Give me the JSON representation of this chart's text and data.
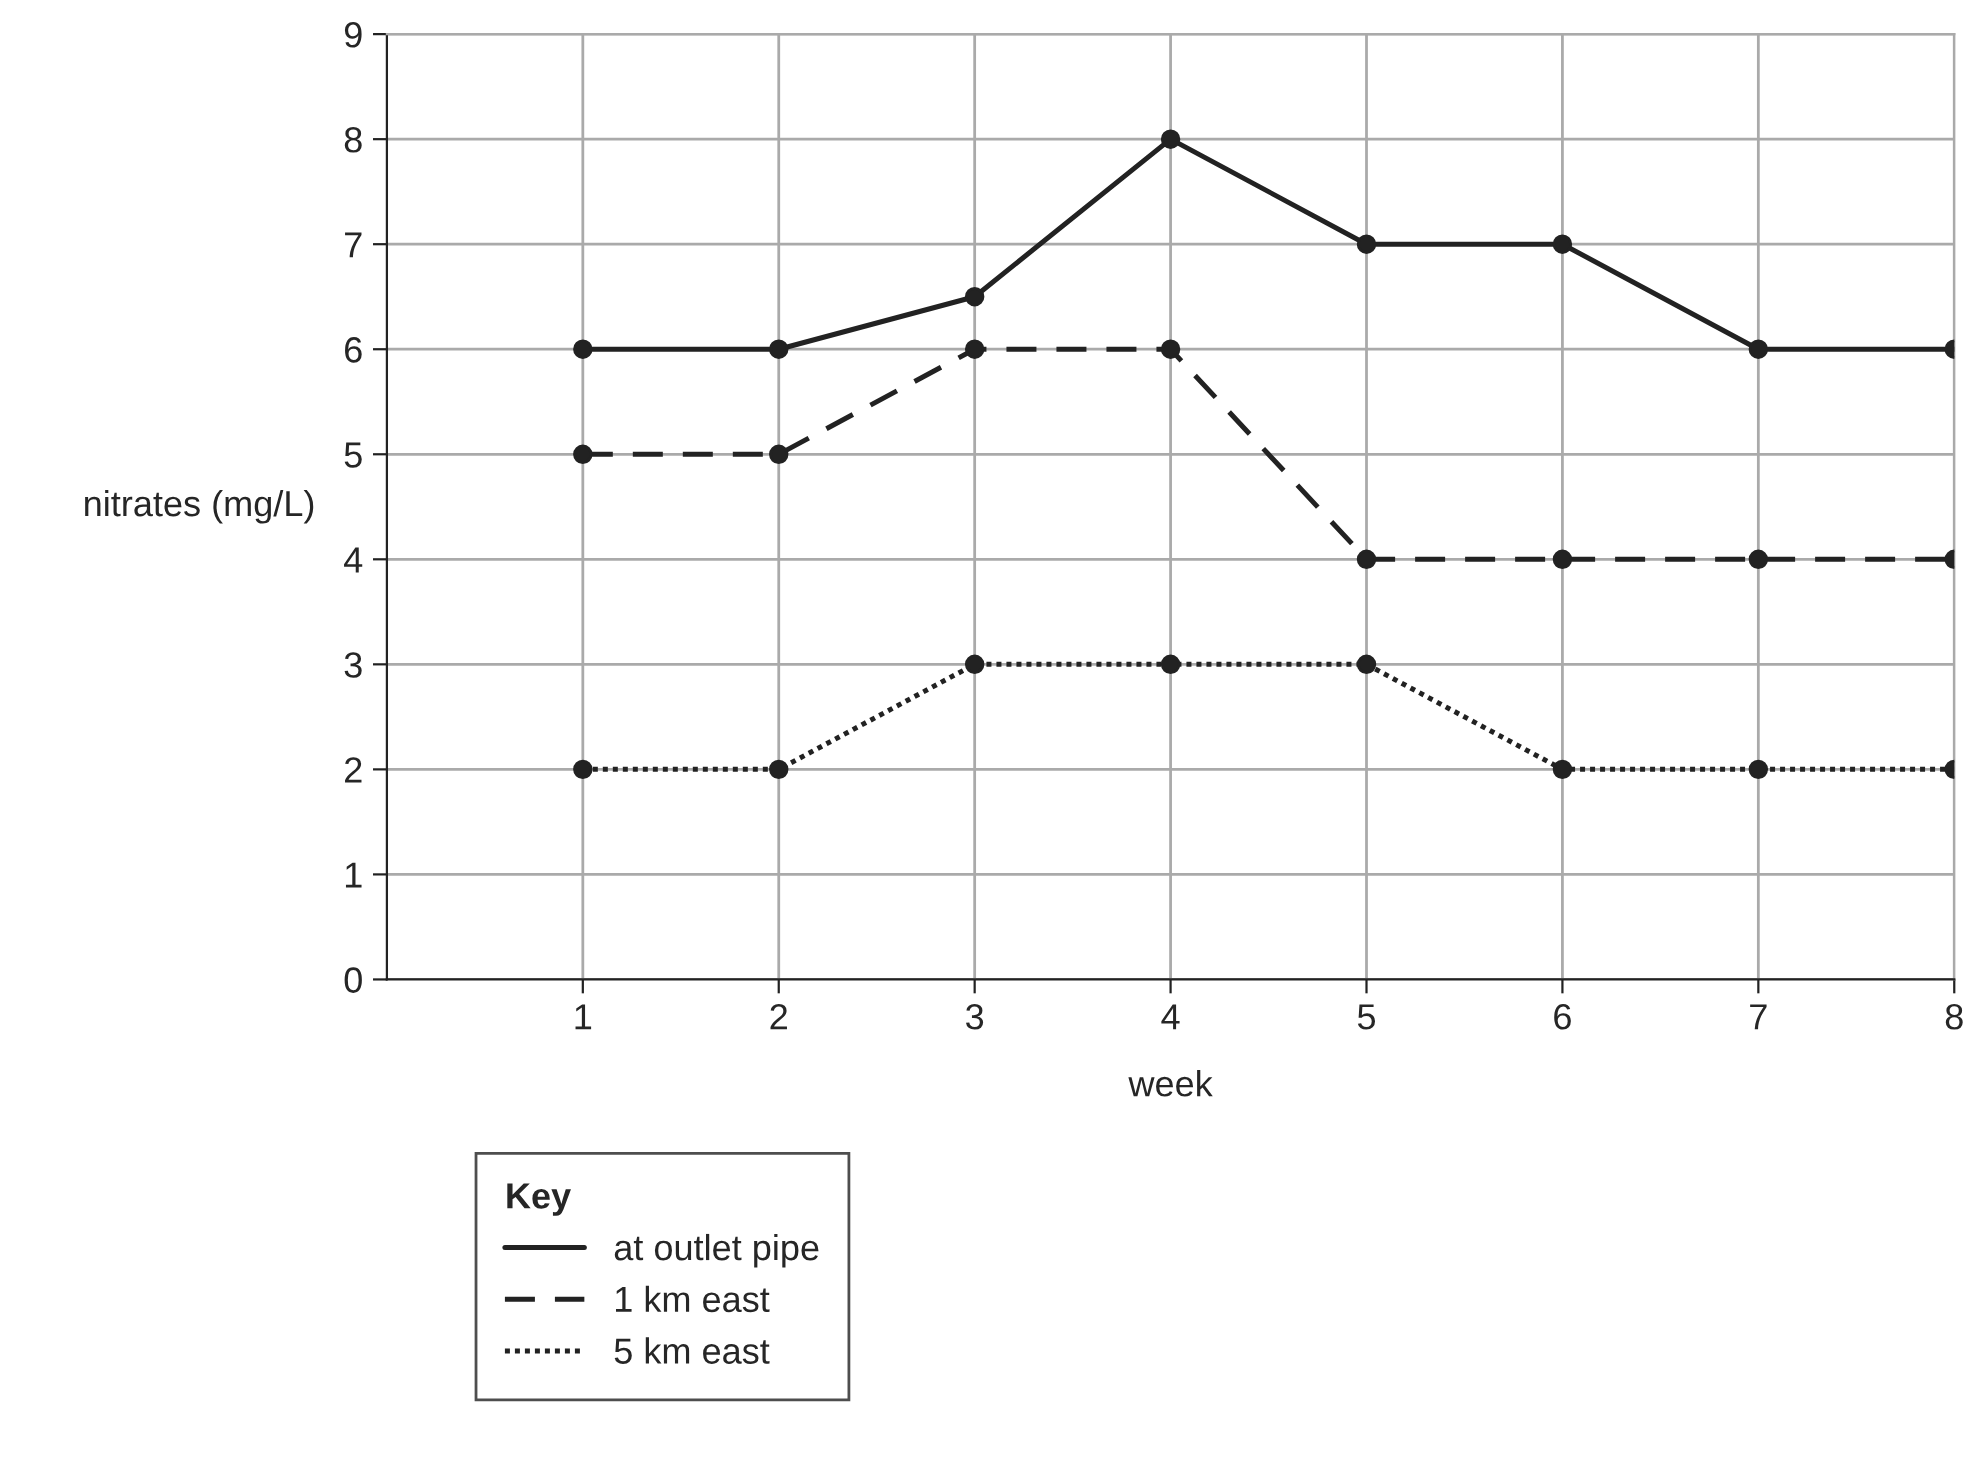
{
  "chart_data": {
    "type": "line",
    "xlabel": "week",
    "ylabel": "nitrates (mg/L)",
    "legend_title": "Key",
    "x": [
      1,
      2,
      3,
      4,
      5,
      6,
      7,
      8
    ],
    "series": [
      {
        "name": "at outlet pipe",
        "color": "#222222",
        "line_style": "solid",
        "values": [
          6,
          6,
          6.5,
          8,
          7,
          7,
          6,
          6
        ]
      },
      {
        "name": "1 km east",
        "color": "#222222",
        "line_style": "dashed",
        "values": [
          5,
          5,
          6,
          6,
          4,
          4,
          4,
          4
        ]
      },
      {
        "name": "5 km east",
        "color": "#222222",
        "line_style": "dotted",
        "values": [
          2,
          2,
          3,
          3,
          3,
          2,
          2,
          2
        ]
      }
    ],
    "xlim": [
      0,
      8
    ],
    "xticks": [
      1,
      2,
      3,
      4,
      5,
      6,
      7,
      8
    ],
    "ylim": [
      0,
      9
    ],
    "yticks": [
      0,
      1,
      2,
      3,
      4,
      5,
      6,
      7,
      8,
      9
    ],
    "grid": true,
    "legend": "bottom",
    "marker": "circle"
  }
}
